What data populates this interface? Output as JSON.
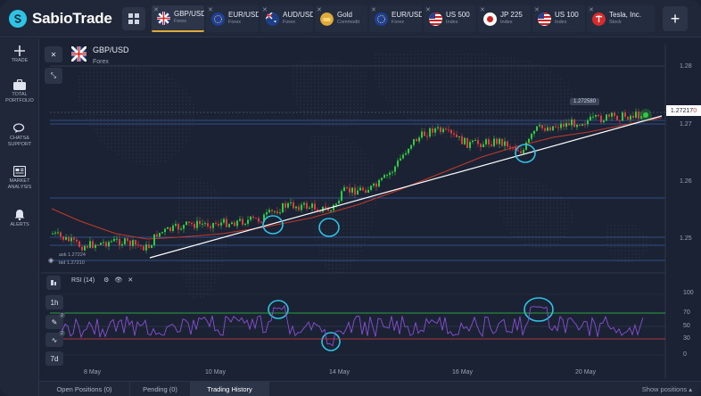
{
  "app": {
    "brand": "SabioTrade"
  },
  "tabs": [
    {
      "name": "GBP/USD",
      "type": "Forex",
      "active": true
    },
    {
      "name": "EUR/USD",
      "type": "Forex"
    },
    {
      "name": "AUD/USD",
      "type": "Forex"
    },
    {
      "name": "Gold",
      "type": "Commodit"
    },
    {
      "name": "EUR/USD",
      "type": "Forex"
    },
    {
      "name": "US 500",
      "type": "Index"
    },
    {
      "name": "JP 225",
      "type": "Index"
    },
    {
      "name": "US 100",
      "type": "Index"
    },
    {
      "name": "Tesla, Inc.",
      "type": "Stock"
    }
  ],
  "sidebar": [
    {
      "label": "TRADE",
      "icon": "plus-icon"
    },
    {
      "label": "TOTAL PORTFOLIO",
      "icon": "briefcase-icon"
    },
    {
      "label": "CHATS& SUPPORT",
      "icon": "chat-icon"
    },
    {
      "label": "MARKET ANALYSIS",
      "icon": "news-icon"
    },
    {
      "label": "ALERTS",
      "icon": "bell-icon"
    }
  ],
  "symbol": {
    "title": "GBP/USD",
    "subtitle": "Forex"
  },
  "quotes": {
    "ask": "ask 1.27224",
    "bid": "bid 1.27210"
  },
  "current_price": {
    "main": "1.27217",
    "tail": "0"
  },
  "tooltip_price": "1.272580",
  "price_axis": [
    "1.28",
    "1.27",
    "1.26",
    "1.25"
  ],
  "rsi": {
    "label": "RSI (14)",
    "levels": [
      "100",
      "70",
      "50",
      "30",
      "0"
    ],
    "upper": 70,
    "lower": 30
  },
  "timeframes": [
    "1h",
    "7d"
  ],
  "dates": [
    "8 May",
    "10 May",
    "14 May",
    "16 May",
    "20 May"
  ],
  "bottom_tabs": [
    {
      "label": "Open Positions (0)"
    },
    {
      "label": "Pending (0)"
    },
    {
      "label": "Trading History",
      "active": true
    }
  ],
  "show_positions": "Show positions",
  "colors": {
    "accent": "#2ec4e6",
    "bull": "#2ecc40",
    "bear": "#e03c3c",
    "rsi_line": "#8a4fd6",
    "trend": "#ffffff",
    "ma": "#c0392b"
  }
}
